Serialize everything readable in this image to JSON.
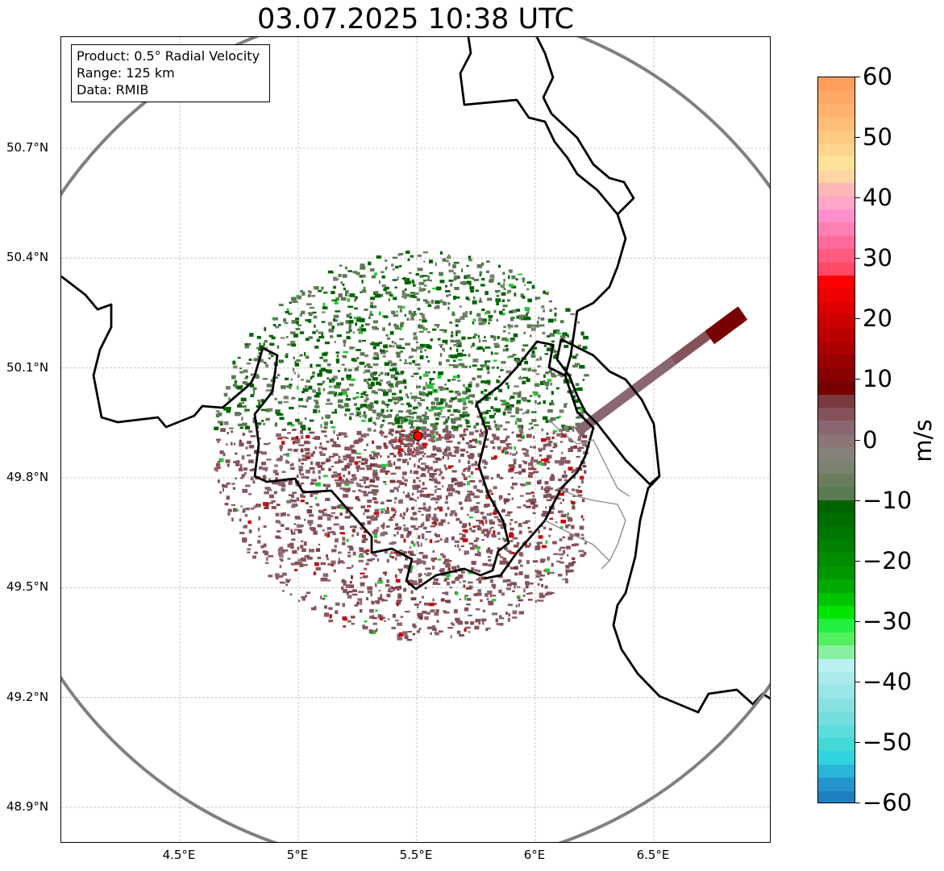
{
  "title": "03.07.2025 10:38 UTC",
  "info_box": {
    "line1": "Product: 0.5° Radial Velocity",
    "line2": "Range: 125 km",
    "line3": "Data: RMIB"
  },
  "map": {
    "lon_range": [
      4.0,
      7.0
    ],
    "lat_range": [
      48.8,
      50.98
    ],
    "lat_ticks": [
      {
        "value": 50.7,
        "label": "50.7°N"
      },
      {
        "value": 50.4,
        "label": "50.4°N"
      },
      {
        "value": 50.1,
        "label": "50.1°N"
      },
      {
        "value": 49.8,
        "label": "49.8°N"
      },
      {
        "value": 49.5,
        "label": "49.5°N"
      },
      {
        "value": 49.2,
        "label": "49.2°N"
      },
      {
        "value": 48.9,
        "label": "48.9°N"
      }
    ],
    "lon_ticks": [
      {
        "value": 4.5,
        "label": "4.5°E"
      },
      {
        "value": 5.0,
        "label": "5°E"
      },
      {
        "value": 5.5,
        "label": "5.5°E"
      },
      {
        "value": 6.0,
        "label": "6°E"
      },
      {
        "value": 6.5,
        "label": "6.5°E"
      }
    ],
    "radar_site": {
      "lon": 5.505,
      "lat": 49.914
    },
    "grid": true,
    "range_ring_color": "#808080",
    "border_color": "#000000",
    "regional_border_color": "#888888"
  },
  "colorbar": {
    "unit": "m/s",
    "min": -60,
    "max": 60,
    "ticks": [
      {
        "value": 60,
        "label": "60"
      },
      {
        "value": 50,
        "label": "50"
      },
      {
        "value": 40,
        "label": "40"
      },
      {
        "value": 30,
        "label": "30"
      },
      {
        "value": 20,
        "label": "20"
      },
      {
        "value": 10,
        "label": "10"
      },
      {
        "value": 0,
        "label": "0"
      },
      {
        "value": -10,
        "label": "−10"
      },
      {
        "value": -20,
        "label": "−20"
      },
      {
        "value": -30,
        "label": "−30"
      },
      {
        "value": -40,
        "label": "−40"
      },
      {
        "value": -50,
        "label": "−50"
      },
      {
        "value": -60,
        "label": "−60"
      }
    ],
    "colors_top_to_bottom": [
      "#ff9e5c",
      "#ffa865",
      "#ffb36e",
      "#ffbe78",
      "#ffc983",
      "#ffd58e",
      "#ffe29a",
      "#ffd6a3",
      "#ffb6b6",
      "#ffa6c9",
      "#ff8fcc",
      "#ff7fb5",
      "#ff6a9a",
      "#ff5a80",
      "#ff4966",
      "#ff0000",
      "#ee0000",
      "#dd0000",
      "#cc0000",
      "#bb0000",
      "#aa0000",
      "#990000",
      "#880000",
      "#770000",
      "#7a3a3f",
      "#86525a",
      "#8a6670",
      "#8b7577",
      "#86827a",
      "#7a8270",
      "#6a7e5e",
      "#5a7a52",
      "#006400",
      "#006d00",
      "#007700",
      "#008200",
      "#008c00",
      "#009800",
      "#00aa00",
      "#00c400",
      "#00e400",
      "#22f040",
      "#55f060",
      "#88f0a0",
      "#bbf0f0",
      "#aaeaea",
      "#98e6e6",
      "#88e2e2",
      "#74dede",
      "#5cdcdc",
      "#44d8d8",
      "#30d4e0",
      "#2ab4d8",
      "#2494cc",
      "#1f7fbf"
    ]
  }
}
